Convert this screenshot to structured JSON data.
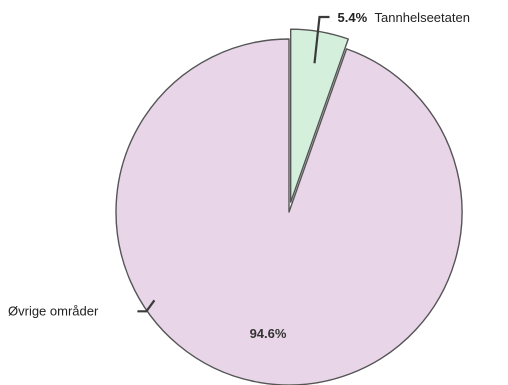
{
  "chart_data": {
    "type": "pie",
    "slices": [
      {
        "label": "Tannhelseetaten",
        "value": 5.4,
        "pct_label": "5.4%",
        "color": "#d5efdd"
      },
      {
        "label": "Øvrige områder",
        "value": 94.6,
        "pct_label": "94.6%",
        "color": "#e8d6e8"
      }
    ],
    "exploded_slice": "Tannhelseetaten",
    "stroke_color": "#555555"
  }
}
